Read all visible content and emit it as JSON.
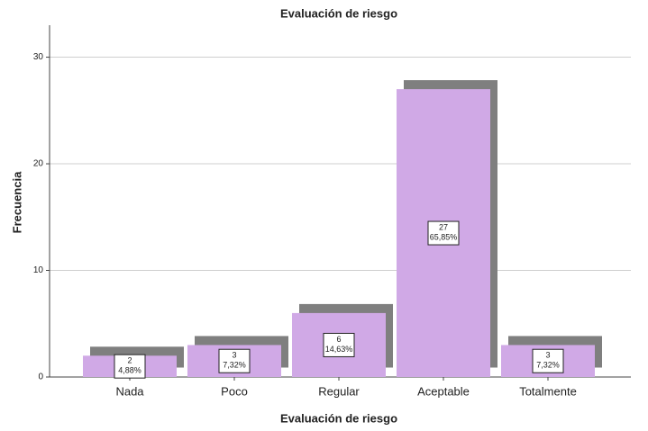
{
  "chart_data": {
    "type": "bar",
    "title": "Evaluación de riesgo",
    "x_label": "Evaluación de riesgo",
    "y_label": "Frecuencia",
    "categories": [
      "Nada",
      "Poco",
      "Regular",
      "Aceptable",
      "Totalmente"
    ],
    "values": [
      2,
      3,
      6,
      27,
      3
    ],
    "percents": [
      4.88,
      7.32,
      14.63,
      65.85,
      7.32
    ],
    "percent_labels": [
      "4,88%",
      "7,32%",
      "14,63%",
      "65,85%",
      "7,32%"
    ],
    "color": "#d0a9e6",
    "shadow_color": "#7f7f7f",
    "ylim": [
      0,
      33
    ],
    "yticks": [
      0,
      10,
      20,
      30
    ],
    "grid": true
  }
}
